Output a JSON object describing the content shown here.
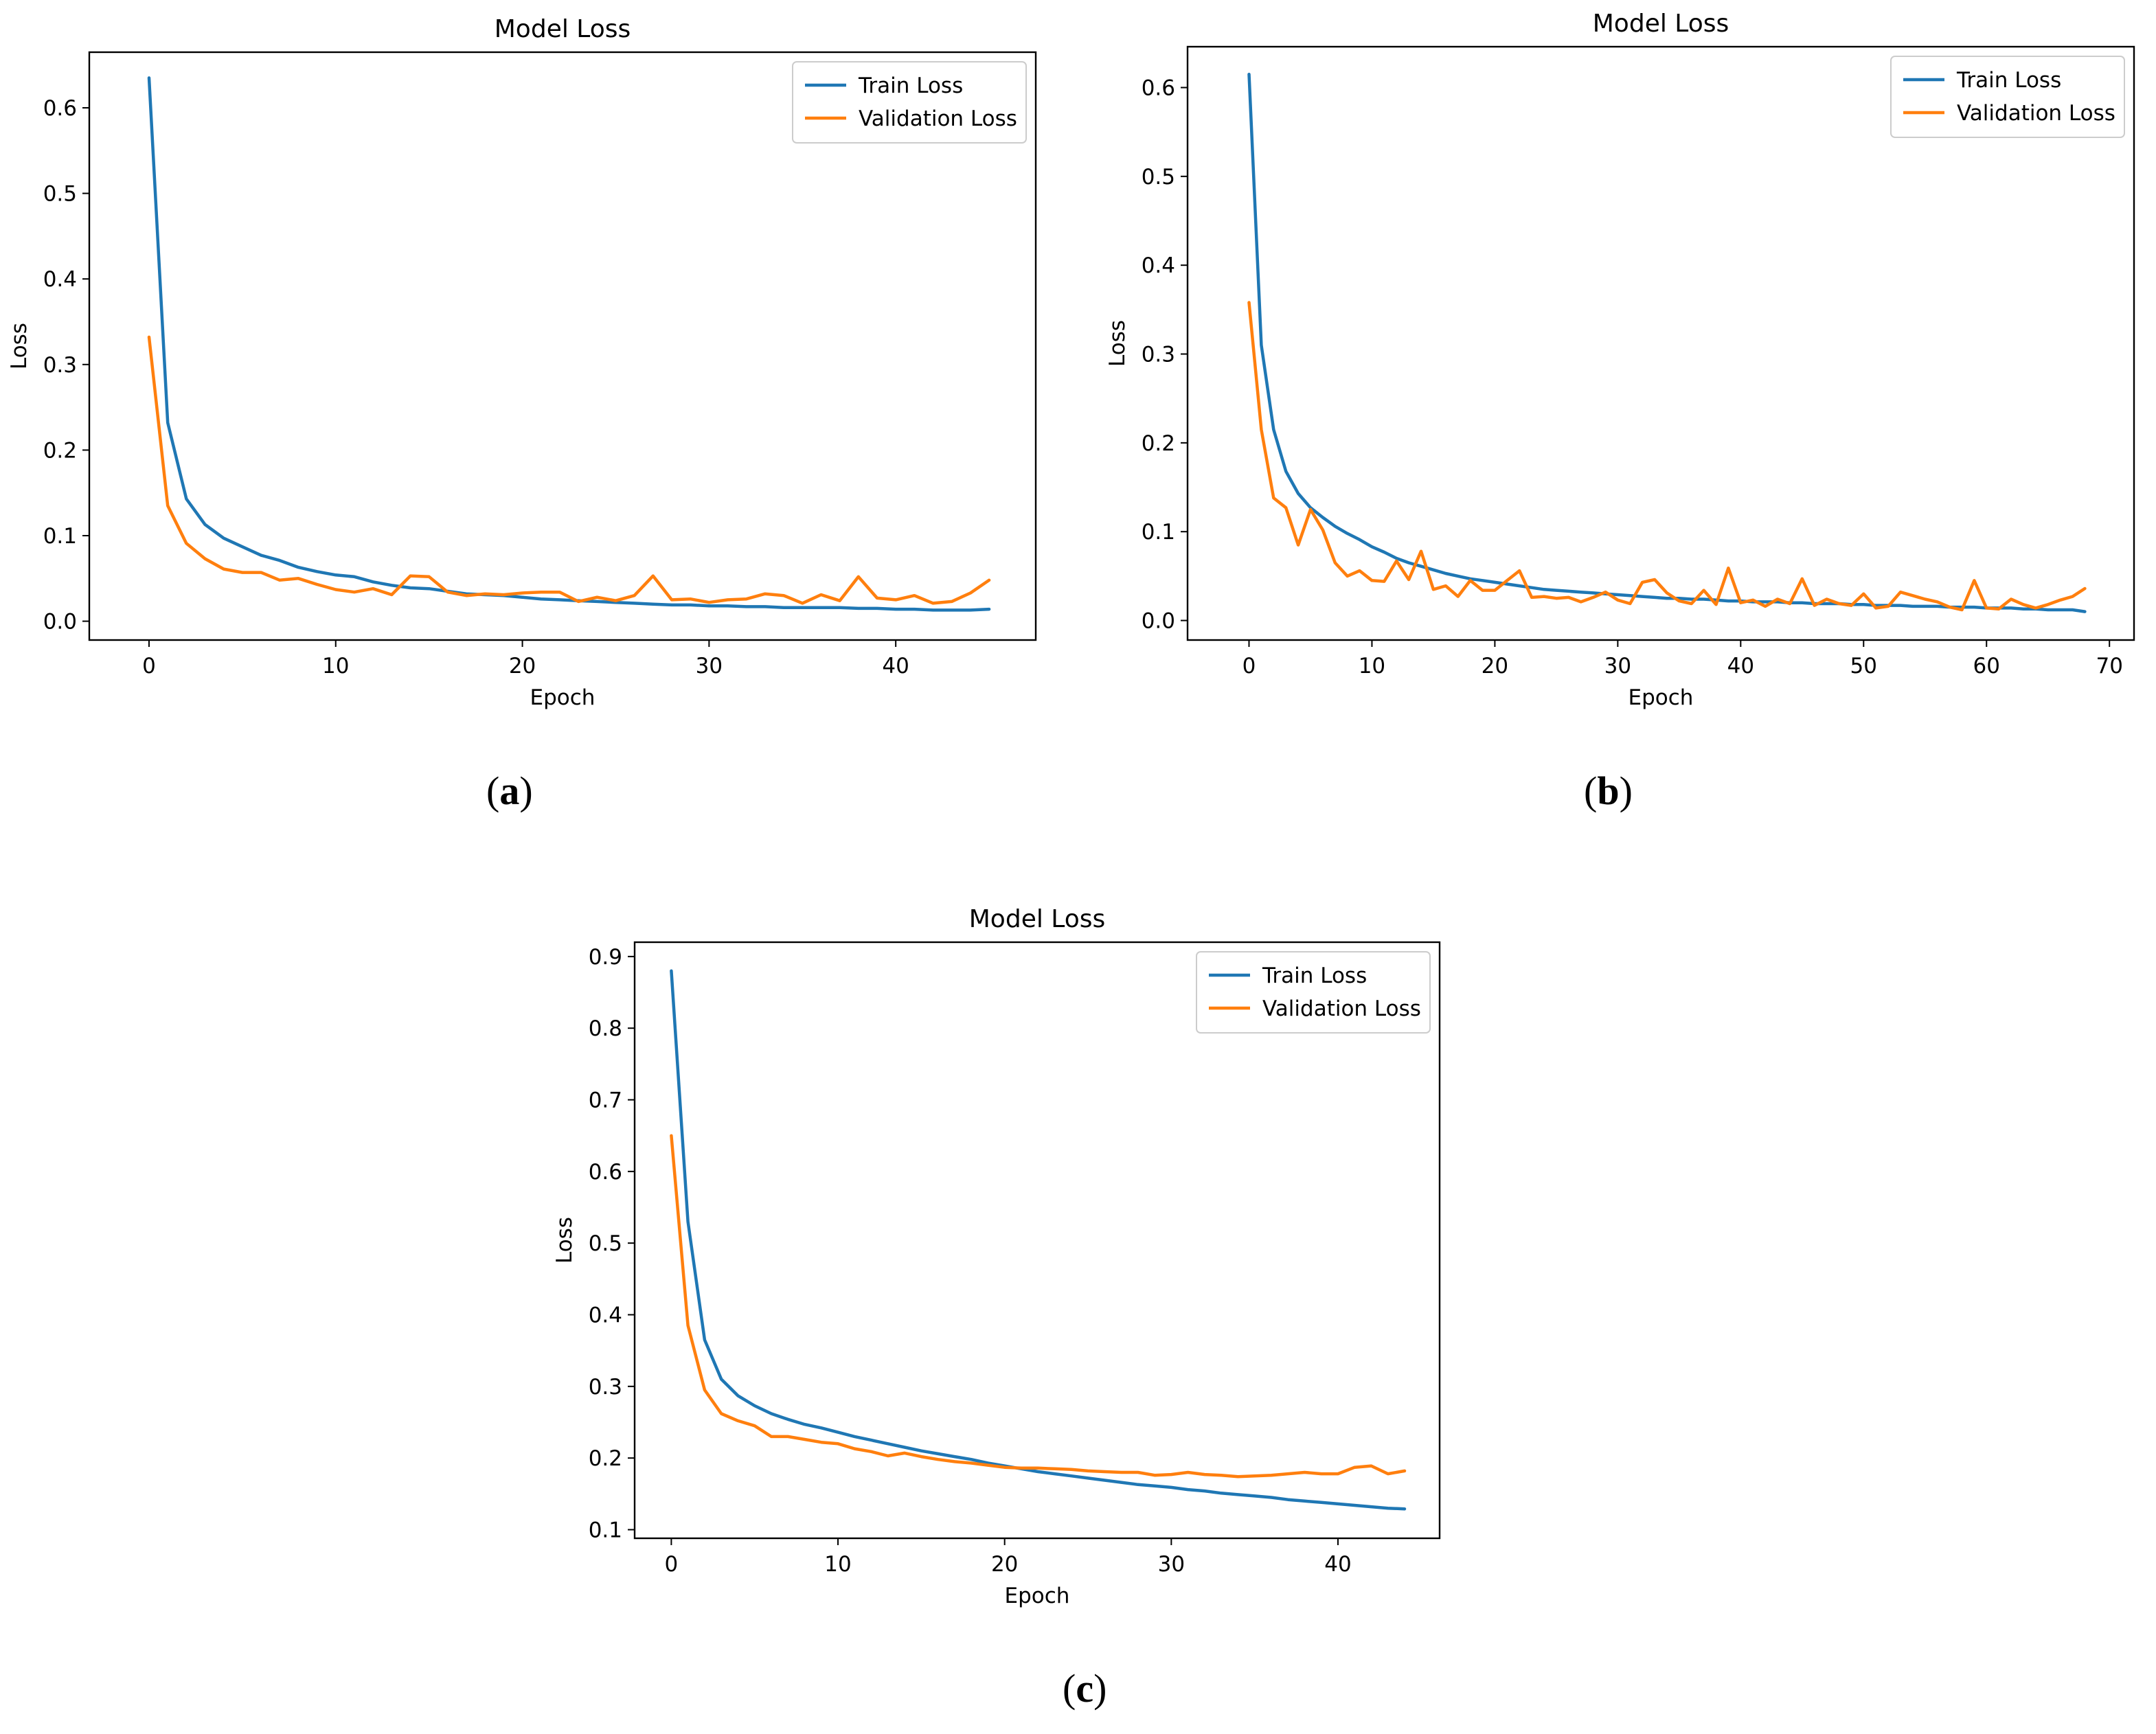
{
  "figure": {
    "captions": [
      "a",
      "b",
      "c"
    ],
    "colors": {
      "train": "#1f77b4",
      "validation": "#ff7f0e",
      "axis": "#000000"
    }
  },
  "chart_data": [
    {
      "panel": "a",
      "type": "line",
      "title": "Model Loss",
      "xlabel": "Epoch",
      "ylabel": "Loss",
      "xlim": [
        -3.2,
        47.5
      ],
      "ylim": [
        -0.022,
        0.665
      ],
      "xticks": [
        0,
        10,
        20,
        30,
        40
      ],
      "yticks": [
        0.0,
        0.1,
        0.2,
        0.3,
        0.4,
        0.5,
        0.6
      ],
      "yticklabels": [
        "0.0",
        "0.1",
        "0.2",
        "0.3",
        "0.4",
        "0.5",
        "0.6"
      ],
      "legend": "top-right",
      "series": [
        {
          "name": "Train Loss",
          "color": "#1f77b4",
          "x": [
            0,
            1,
            2,
            3,
            4,
            5,
            6,
            7,
            8,
            9,
            10,
            11,
            12,
            13,
            14,
            15,
            16,
            17,
            18,
            19,
            20,
            21,
            22,
            23,
            24,
            25,
            26,
            27,
            28,
            29,
            30,
            31,
            32,
            33,
            34,
            35,
            36,
            37,
            38,
            39,
            40,
            41,
            42,
            43,
            44,
            45
          ],
          "values": [
            0.635,
            0.232,
            0.143,
            0.113,
            0.097,
            0.087,
            0.077,
            0.071,
            0.063,
            0.058,
            0.054,
            0.052,
            0.046,
            0.042,
            0.039,
            0.038,
            0.035,
            0.032,
            0.031,
            0.03,
            0.028,
            0.026,
            0.025,
            0.024,
            0.023,
            0.022,
            0.021,
            0.02,
            0.019,
            0.019,
            0.018,
            0.018,
            0.017,
            0.017,
            0.016,
            0.016,
            0.016,
            0.016,
            0.015,
            0.015,
            0.014,
            0.014,
            0.013,
            0.013,
            0.013,
            0.014
          ]
        },
        {
          "name": "Validation Loss",
          "color": "#ff7f0e",
          "x": [
            0,
            1,
            2,
            3,
            4,
            5,
            6,
            7,
            8,
            9,
            10,
            11,
            12,
            13,
            14,
            15,
            16,
            17,
            18,
            19,
            20,
            21,
            22,
            23,
            24,
            25,
            26,
            27,
            28,
            29,
            30,
            31,
            32,
            33,
            34,
            35,
            36,
            37,
            38,
            39,
            40,
            41,
            42,
            43,
            44,
            45
          ],
          "values": [
            0.332,
            0.135,
            0.091,
            0.073,
            0.061,
            0.057,
            0.057,
            0.048,
            0.05,
            0.043,
            0.037,
            0.034,
            0.038,
            0.031,
            0.053,
            0.052,
            0.034,
            0.03,
            0.032,
            0.031,
            0.033,
            0.034,
            0.034,
            0.023,
            0.028,
            0.024,
            0.03,
            0.053,
            0.025,
            0.026,
            0.022,
            0.025,
            0.026,
            0.032,
            0.03,
            0.021,
            0.031,
            0.024,
            0.052,
            0.027,
            0.025,
            0.03,
            0.021,
            0.023,
            0.033,
            0.048
          ]
        }
      ]
    },
    {
      "panel": "b",
      "type": "line",
      "title": "Model Loss",
      "xlabel": "Epoch",
      "ylabel": "Loss",
      "xlim": [
        -5.0,
        72.0
      ],
      "ylim": [
        -0.022,
        0.646
      ],
      "xticks": [
        0,
        10,
        20,
        30,
        40,
        50,
        60,
        70
      ],
      "yticks": [
        0.0,
        0.1,
        0.2,
        0.3,
        0.4,
        0.5,
        0.6
      ],
      "yticklabels": [
        "0.0",
        "0.1",
        "0.2",
        "0.3",
        "0.4",
        "0.5",
        "0.6"
      ],
      "legend": "top-right",
      "series": [
        {
          "name": "Train Loss",
          "color": "#1f77b4",
          "x": [
            0,
            1,
            2,
            3,
            4,
            5,
            6,
            7,
            8,
            9,
            10,
            11,
            12,
            13,
            14,
            15,
            16,
            17,
            18,
            19,
            20,
            21,
            22,
            23,
            24,
            25,
            26,
            27,
            28,
            29,
            30,
            31,
            32,
            33,
            34,
            35,
            36,
            37,
            38,
            39,
            40,
            41,
            42,
            43,
            44,
            45,
            46,
            47,
            48,
            49,
            50,
            51,
            52,
            53,
            54,
            55,
            56,
            57,
            58,
            59,
            60,
            61,
            62,
            63,
            64,
            65,
            66,
            67,
            68
          ],
          "values": [
            0.615,
            0.31,
            0.215,
            0.168,
            0.143,
            0.127,
            0.116,
            0.106,
            0.098,
            0.091,
            0.083,
            0.077,
            0.07,
            0.065,
            0.061,
            0.057,
            0.053,
            0.05,
            0.047,
            0.045,
            0.043,
            0.041,
            0.039,
            0.037,
            0.035,
            0.034,
            0.033,
            0.032,
            0.031,
            0.03,
            0.029,
            0.028,
            0.027,
            0.026,
            0.025,
            0.025,
            0.024,
            0.024,
            0.023,
            0.022,
            0.022,
            0.021,
            0.021,
            0.021,
            0.02,
            0.02,
            0.019,
            0.019,
            0.019,
            0.018,
            0.018,
            0.017,
            0.017,
            0.017,
            0.016,
            0.016,
            0.016,
            0.015,
            0.015,
            0.015,
            0.014,
            0.014,
            0.014,
            0.013,
            0.013,
            0.012,
            0.012,
            0.012,
            0.01
          ]
        },
        {
          "name": "Validation Loss",
          "color": "#ff7f0e",
          "x": [
            0,
            1,
            2,
            3,
            4,
            5,
            6,
            7,
            8,
            9,
            10,
            11,
            12,
            13,
            14,
            15,
            16,
            17,
            18,
            19,
            20,
            21,
            22,
            23,
            24,
            25,
            26,
            27,
            28,
            29,
            30,
            31,
            32,
            33,
            34,
            35,
            36,
            37,
            38,
            39,
            40,
            41,
            42,
            43,
            44,
            45,
            46,
            47,
            48,
            49,
            50,
            51,
            52,
            53,
            54,
            55,
            56,
            57,
            58,
            59,
            60,
            61,
            62,
            63,
            64,
            65,
            66,
            67,
            68
          ],
          "values": [
            0.358,
            0.215,
            0.138,
            0.127,
            0.085,
            0.125,
            0.102,
            0.065,
            0.05,
            0.056,
            0.045,
            0.044,
            0.067,
            0.046,
            0.078,
            0.035,
            0.039,
            0.027,
            0.045,
            0.034,
            0.034,
            0.045,
            0.056,
            0.026,
            0.027,
            0.025,
            0.026,
            0.021,
            0.026,
            0.032,
            0.023,
            0.019,
            0.043,
            0.046,
            0.031,
            0.022,
            0.019,
            0.034,
            0.018,
            0.059,
            0.02,
            0.023,
            0.016,
            0.024,
            0.019,
            0.047,
            0.017,
            0.024,
            0.019,
            0.017,
            0.03,
            0.014,
            0.016,
            0.032,
            0.028,
            0.024,
            0.021,
            0.015,
            0.012,
            0.045,
            0.014,
            0.013,
            0.024,
            0.018,
            0.014,
            0.018,
            0.023,
            0.027,
            0.036
          ]
        }
      ]
    },
    {
      "panel": "c",
      "type": "line",
      "title": "Model Loss",
      "xlabel": "Epoch",
      "ylabel": "Loss",
      "xlim": [
        -2.2,
        46.1
      ],
      "ylim": [
        0.088,
        0.92
      ],
      "xticks": [
        0,
        10,
        20,
        30,
        40
      ],
      "yticks": [
        0.1,
        0.2,
        0.3,
        0.4,
        0.5,
        0.6,
        0.7,
        0.8,
        0.9
      ],
      "yticklabels": [
        "0.1",
        "0.2",
        "0.3",
        "0.4",
        "0.5",
        "0.6",
        "0.7",
        "0.8",
        "0.9"
      ],
      "legend": "top-right",
      "series": [
        {
          "name": "Train Loss",
          "color": "#1f77b4",
          "x": [
            0,
            1,
            2,
            3,
            4,
            5,
            6,
            7,
            8,
            9,
            10,
            11,
            12,
            13,
            14,
            15,
            16,
            17,
            18,
            19,
            20,
            21,
            22,
            23,
            24,
            25,
            26,
            27,
            28,
            29,
            30,
            31,
            32,
            33,
            34,
            35,
            36,
            37,
            38,
            39,
            40,
            41,
            42,
            43,
            44
          ],
          "values": [
            0.88,
            0.53,
            0.365,
            0.31,
            0.287,
            0.273,
            0.262,
            0.254,
            0.247,
            0.242,
            0.236,
            0.23,
            0.225,
            0.22,
            0.215,
            0.21,
            0.206,
            0.202,
            0.198,
            0.193,
            0.189,
            0.185,
            0.181,
            0.178,
            0.175,
            0.172,
            0.169,
            0.166,
            0.163,
            0.161,
            0.159,
            0.156,
            0.154,
            0.151,
            0.149,
            0.147,
            0.145,
            0.142,
            0.14,
            0.138,
            0.136,
            0.134,
            0.132,
            0.13,
            0.129
          ]
        },
        {
          "name": "Validation Loss",
          "color": "#ff7f0e",
          "x": [
            0,
            1,
            2,
            3,
            4,
            5,
            6,
            7,
            8,
            9,
            10,
            11,
            12,
            13,
            14,
            15,
            16,
            17,
            18,
            19,
            20,
            21,
            22,
            23,
            24,
            25,
            26,
            27,
            28,
            29,
            30,
            31,
            32,
            33,
            34,
            35,
            36,
            37,
            38,
            39,
            40,
            41,
            42,
            43,
            44
          ],
          "values": [
            0.65,
            0.385,
            0.295,
            0.262,
            0.252,
            0.245,
            0.23,
            0.23,
            0.226,
            0.222,
            0.22,
            0.213,
            0.209,
            0.203,
            0.207,
            0.202,
            0.198,
            0.195,
            0.193,
            0.19,
            0.187,
            0.186,
            0.186,
            0.185,
            0.184,
            0.182,
            0.181,
            0.18,
            0.18,
            0.176,
            0.177,
            0.18,
            0.177,
            0.176,
            0.174,
            0.175,
            0.176,
            0.178,
            0.18,
            0.178,
            0.178,
            0.187,
            0.189,
            0.178,
            0.182
          ]
        }
      ]
    }
  ]
}
